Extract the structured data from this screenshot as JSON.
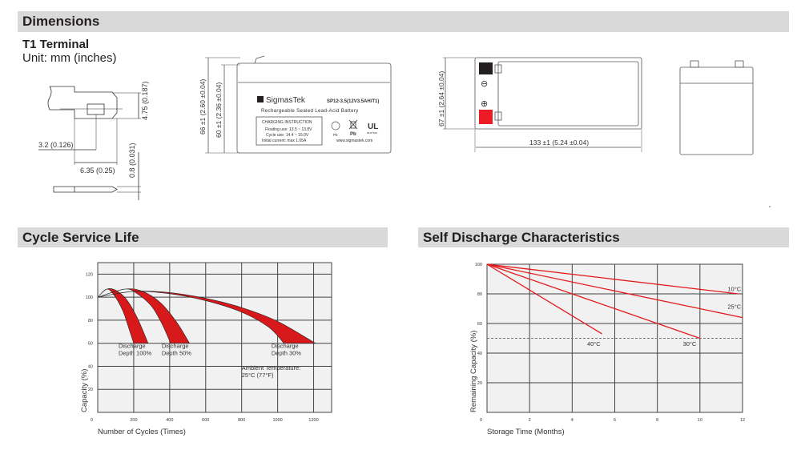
{
  "sections": {
    "dimensions": "Dimensions",
    "cycle_life": "Cycle Service Life",
    "self_discharge": "Self Discharge Characteristics"
  },
  "terminal": {
    "title": "T1 Terminal",
    "unit": "Unit: mm (inches)",
    "dim_height": "4.75 (0.187)",
    "dim_offset": "3.2 (0.126)",
    "dim_width": "6.35 (0.25)",
    "dim_thickness": "0.8 (0.031)"
  },
  "front_view": {
    "dim_total_height": "66 ±1 (2.60 ±0.04)",
    "dim_case_height": "60 ±1 (2.36 ±0.04)",
    "brand": "SigmasTek",
    "model": "SP12-3.5(12V3.5AH/T1)",
    "subtitle": "Rechargeable Sealed Lead-Acid Battery",
    "charging_title": "CHARGING INSTRUCTION",
    "charging_lines": [
      "Floating use: 13.5 ~ 13.8V",
      "Cycle use: 14.4 ~ 15.0V",
      "Initial current: max 1.05A"
    ],
    "pb1": "Pb",
    "pb2": "Pb",
    "ul_code": "MH47529",
    "website": "www.sigmastek.com",
    "colors": {
      "negative_terminal": "#231f20",
      "positive_terminal": "#ed1c24"
    }
  },
  "top_view": {
    "dim_width": "67 ±1 (2.64 ±0.04)",
    "dim_length": "133 ±1 (5.24 ±0.04)",
    "minus": "⊖",
    "plus": "⊕"
  },
  "chart_data": [
    {
      "type": "area",
      "title": "Cycle Service Life",
      "xlabel": "Number of Cycles (Times)",
      "ylabel": "Capacity (%)",
      "xlim": [
        0,
        1300
      ],
      "ylim": [
        0,
        130
      ],
      "xticks": [
        0,
        200,
        400,
        600,
        800,
        1000,
        1200
      ],
      "yticks": [
        20,
        40,
        60,
        80,
        100,
        120
      ],
      "grid": true,
      "band_color": "#d7191c",
      "series": [
        {
          "name": "Discharge Depth 100%",
          "upper": [
            [
              0,
              100
            ],
            [
              50,
              107
            ],
            [
              100,
              106
            ],
            [
              160,
              98
            ],
            [
              220,
              82
            ],
            [
              280,
              60
            ]
          ],
          "lower": [
            [
              0,
              100
            ],
            [
              50,
              107
            ],
            [
              90,
              102
            ],
            [
              140,
              88
            ],
            [
              175,
              72
            ],
            [
              200,
              60
            ]
          ]
        },
        {
          "name": "Discharge Depth 50%",
          "upper": [
            [
              0,
              100
            ],
            [
              150,
              107
            ],
            [
              250,
              105
            ],
            [
              350,
              95
            ],
            [
              440,
              78
            ],
            [
              510,
              60
            ]
          ],
          "lower": [
            [
              0,
              100
            ],
            [
              150,
              107
            ],
            [
              220,
              103
            ],
            [
              300,
              92
            ],
            [
              360,
              76
            ],
            [
              405,
              60
            ]
          ]
        },
        {
          "name": "Discharge Depth 30%",
          "upper": [
            [
              0,
              100
            ],
            [
              200,
              105
            ],
            [
              400,
              104
            ],
            [
              600,
              99
            ],
            [
              800,
              91
            ],
            [
              1000,
              79
            ],
            [
              1210,
              60
            ]
          ],
          "lower": [
            [
              0,
              100
            ],
            [
              200,
              105
            ],
            [
              400,
              103
            ],
            [
              600,
              97
            ],
            [
              800,
              87
            ],
            [
              950,
              74
            ],
            [
              1035,
              60
            ]
          ]
        }
      ],
      "labels": [
        {
          "text": [
            "Discharge",
            "Depth 100%"
          ],
          "x": 160,
          "y": 56
        },
        {
          "text": [
            "Discharge",
            "Depth 50%"
          ],
          "x": 400,
          "y": 56
        },
        {
          "text": [
            "Discharge",
            "Depth 30%"
          ],
          "x": 1010,
          "y": 56
        }
      ],
      "annotation": [
        "Ambient Temperature:",
        "25°C (77°F)"
      ],
      "annotation_pos": {
        "x": 800,
        "y": 37
      }
    },
    {
      "type": "line",
      "title": "Self Discharge Characteristics",
      "xlabel": "Storage Time (Months)",
      "ylabel": "Remaining Capacity (%)",
      "xlim": [
        0,
        12
      ],
      "ylim": [
        0,
        100
      ],
      "xticks": [
        0,
        2,
        4,
        6,
        8,
        10,
        12
      ],
      "yticks": [
        20,
        40,
        60,
        80,
        100
      ],
      "grid": true,
      "line_color": "#e31a1c",
      "reference_line": {
        "y": 50,
        "style": "dashed"
      },
      "series": [
        {
          "name": "10°C",
          "points": [
            [
              0,
              100
            ],
            [
              11.8,
              80
            ]
          ],
          "label_at": [
            11.3,
            82
          ]
        },
        {
          "name": "25°C",
          "points": [
            [
              0,
              100
            ],
            [
              12,
              64
            ]
          ],
          "label_at": [
            11.3,
            70
          ]
        },
        {
          "name": "30°C",
          "points": [
            [
              0,
              100
            ],
            [
              10,
              50
            ]
          ],
          "label_at": [
            9.2,
            45
          ]
        },
        {
          "name": "40°C",
          "points": [
            [
              0,
              100
            ],
            [
              5.4,
              53
            ]
          ],
          "label_at": [
            4.7,
            45
          ]
        }
      ]
    }
  ]
}
